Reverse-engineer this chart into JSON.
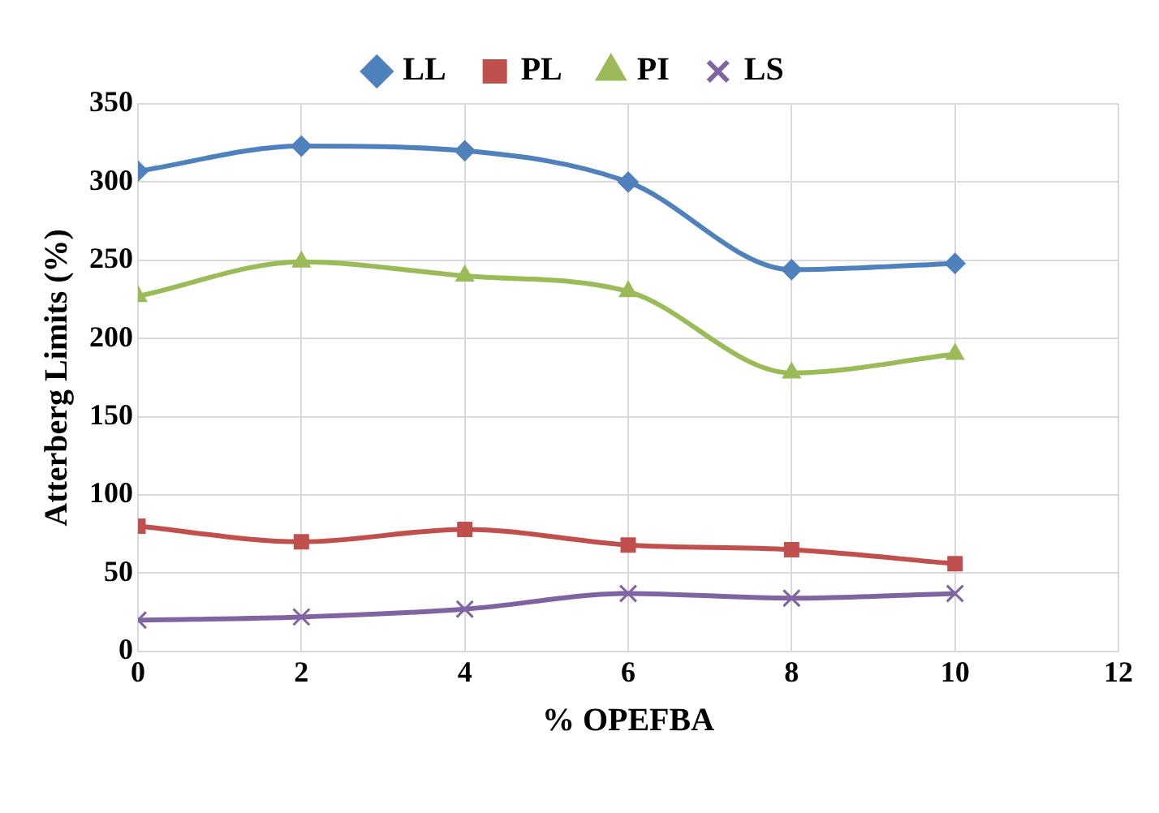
{
  "chart_data": {
    "type": "line",
    "xlabel": "% OPEFBA",
    "ylabel": "Atterberg Limits (%)",
    "xlim": [
      0,
      12
    ],
    "xticks": [
      0,
      2,
      4,
      6,
      8,
      10,
      12
    ],
    "ylim": [
      0,
      350
    ],
    "yticks": [
      0,
      50,
      100,
      150,
      200,
      250,
      300,
      350
    ],
    "grid": true,
    "legend": "top",
    "x": [
      0,
      2,
      4,
      6,
      8,
      10
    ],
    "series": [
      {
        "name": "LL",
        "color": "#4f81bd",
        "marker": "diamond",
        "values": [
          307,
          323,
          320,
          300,
          244,
          248
        ]
      },
      {
        "name": "PL",
        "color": "#c0504d",
        "marker": "square",
        "values": [
          80,
          70,
          78,
          68,
          65,
          56
        ]
      },
      {
        "name": "PI",
        "color": "#9bbb59",
        "marker": "triangle",
        "values": [
          227,
          249,
          240,
          230,
          178,
          190
        ]
      },
      {
        "name": "LS",
        "color": "#8064a2",
        "marker": "cross",
        "values": [
          20,
          22,
          27,
          37,
          34,
          37
        ]
      }
    ]
  }
}
